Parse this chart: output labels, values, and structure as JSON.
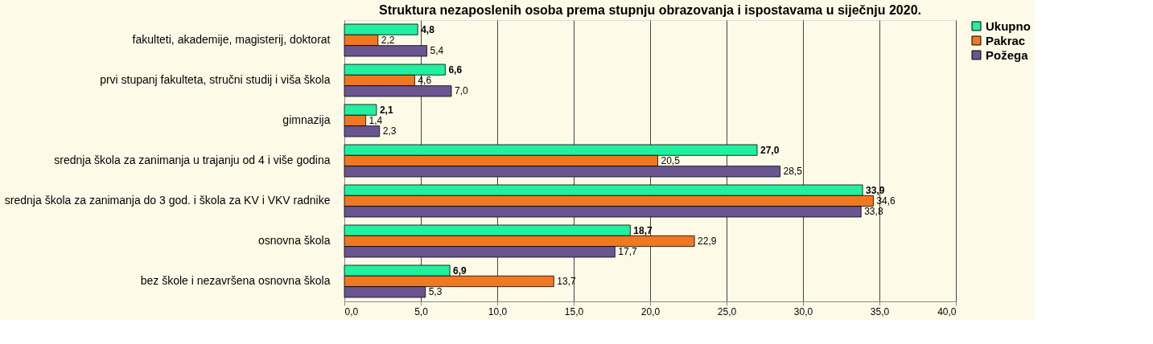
{
  "chart_data": {
    "type": "bar",
    "orientation": "horizontal",
    "title": "Struktura nezaposlenih osoba prema stupnju obrazovanja i ispostavama u  siječnju 2020.",
    "categories": [
      "fakulteti, akademije, magisterij, doktorat",
      "prvi stupanj fakulteta, stručni studij i viša škola",
      "gimnazija",
      "srednja škola za zanimanja u trajanju od 4 i više godina",
      "srednja škola za zanimanja do 3 god. i škola za KV i VKV radnike",
      "osnovna škola",
      "bez škole i nezavršena osnovna škola"
    ],
    "series": [
      {
        "name": "Ukupno",
        "color": "#20f0a0",
        "values": [
          4.8,
          6.6,
          2.1,
          27.0,
          33.9,
          18.7,
          6.9
        ],
        "value_labels": [
          "4,8",
          "6,6",
          "2,1",
          "27,0",
          "33,9",
          "18,7",
          "6,9"
        ]
      },
      {
        "name": "Pakrac",
        "color": "#f07820",
        "values": [
          2.2,
          4.6,
          1.4,
          20.5,
          34.6,
          22.9,
          13.7
        ],
        "value_labels": [
          "2,2",
          "4,6",
          "1,4",
          "20,5",
          "34,6",
          "22,9",
          "13,7"
        ]
      },
      {
        "name": "Požega",
        "color": "#6a5590",
        "values": [
          5.4,
          7.0,
          2.3,
          28.5,
          33.8,
          17.7,
          5.3
        ],
        "value_labels": [
          "5,4",
          "7,0",
          "2,3",
          "28,5",
          "33,8",
          "17,7",
          "5,3"
        ]
      }
    ],
    "xlim": [
      0,
      40
    ],
    "xticks": [
      {
        "value": 0,
        "label": "0,0"
      },
      {
        "value": 5,
        "label": "5,0"
      },
      {
        "value": 10,
        "label": "10,0"
      },
      {
        "value": 15,
        "label": "15,0"
      },
      {
        "value": 20,
        "label": "20,0"
      },
      {
        "value": 25,
        "label": "25,0"
      },
      {
        "value": 30,
        "label": "30,0"
      },
      {
        "value": 35,
        "label": "35,0"
      },
      {
        "value": 40,
        "label": "40,0"
      }
    ],
    "grid": "x",
    "legend": "right"
  }
}
